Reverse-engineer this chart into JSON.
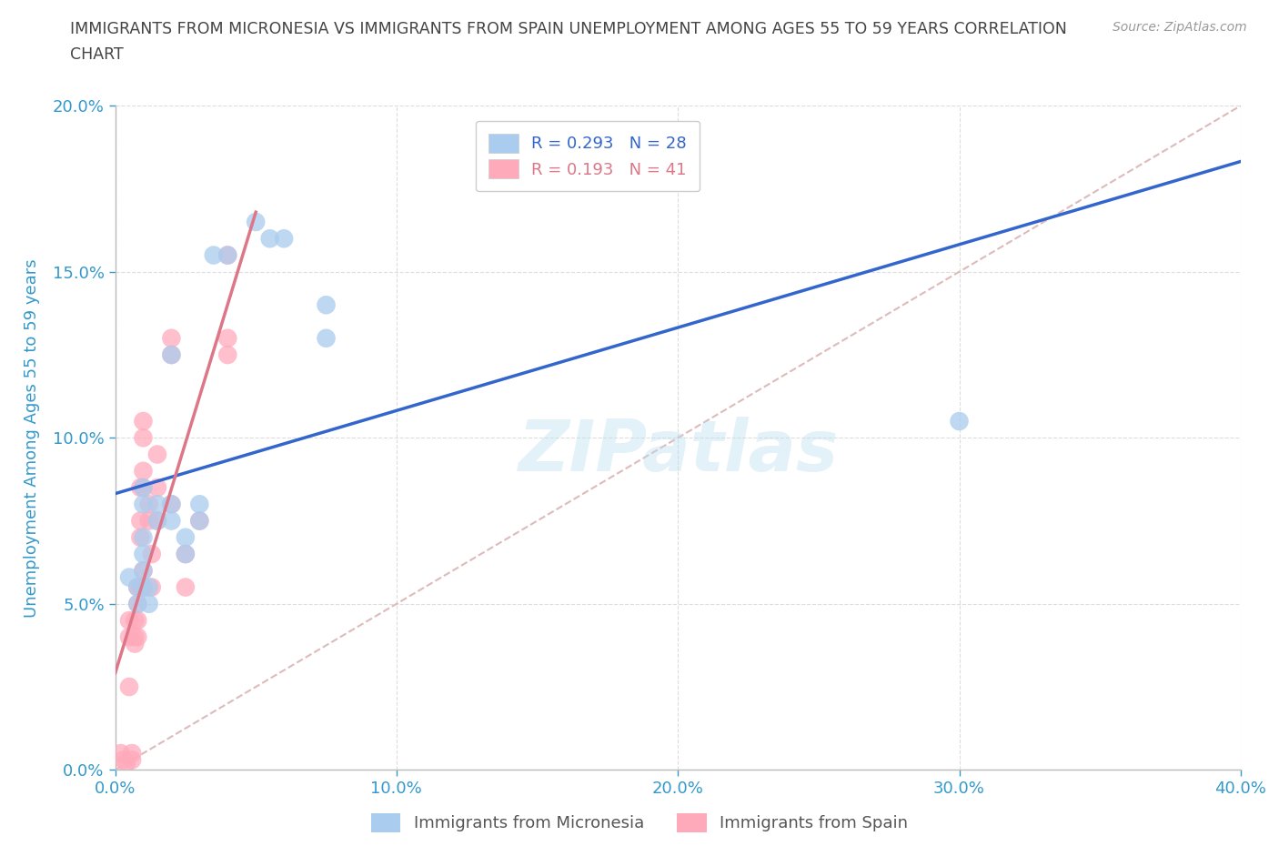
{
  "title_line1": "IMMIGRANTS FROM MICRONESIA VS IMMIGRANTS FROM SPAIN UNEMPLOYMENT AMONG AGES 55 TO 59 YEARS CORRELATION",
  "title_line2": "CHART",
  "source": "Source: ZipAtlas.com",
  "ylabel": "Unemployment Among Ages 55 to 59 years",
  "xlim": [
    0.0,
    0.4
  ],
  "ylim": [
    0.0,
    0.2
  ],
  "xticks": [
    0.0,
    0.1,
    0.2,
    0.3,
    0.4
  ],
  "yticks": [
    0.0,
    0.05,
    0.1,
    0.15,
    0.2
  ],
  "xtick_labels": [
    "0.0%",
    "10.0%",
    "20.0%",
    "30.0%",
    "40.0%"
  ],
  "ytick_labels": [
    "0.0%",
    "5.0%",
    "10.0%",
    "15.0%",
    "20.0%"
  ],
  "micronesia_color": "#aaccee",
  "spain_color": "#ffaabb",
  "micronesia_line_color": "#3366cc",
  "spain_line_color": "#dd7788",
  "diagonal_color": "#ddbbbb",
  "R_micronesia": 0.293,
  "N_micronesia": 28,
  "R_spain": 0.193,
  "N_spain": 41,
  "legend_label_micronesia": "Immigrants from Micronesia",
  "legend_label_spain": "Immigrants from Spain",
  "watermark": "ZIPatlas",
  "micronesia_x": [
    0.005,
    0.008,
    0.008,
    0.01,
    0.01,
    0.01,
    0.01,
    0.01,
    0.01,
    0.012,
    0.012,
    0.015,
    0.015,
    0.02,
    0.02,
    0.02,
    0.025,
    0.025,
    0.03,
    0.03,
    0.035,
    0.04,
    0.05,
    0.055,
    0.06,
    0.075,
    0.075,
    0.3
  ],
  "micronesia_y": [
    0.058,
    0.055,
    0.05,
    0.085,
    0.08,
    0.07,
    0.065,
    0.06,
    0.055,
    0.055,
    0.05,
    0.08,
    0.075,
    0.125,
    0.08,
    0.075,
    0.07,
    0.065,
    0.08,
    0.075,
    0.155,
    0.155,
    0.165,
    0.16,
    0.16,
    0.14,
    0.13,
    0.105
  ],
  "spain_x": [
    0.002,
    0.003,
    0.004,
    0.005,
    0.005,
    0.005,
    0.006,
    0.006,
    0.007,
    0.007,
    0.007,
    0.008,
    0.008,
    0.008,
    0.008,
    0.009,
    0.009,
    0.009,
    0.009,
    0.01,
    0.01,
    0.01,
    0.01,
    0.01,
    0.01,
    0.012,
    0.012,
    0.013,
    0.013,
    0.015,
    0.015,
    0.015,
    0.02,
    0.02,
    0.02,
    0.025,
    0.025,
    0.03,
    0.04,
    0.04,
    0.04
  ],
  "spain_y": [
    0.005,
    0.003,
    0.002,
    0.045,
    0.04,
    0.025,
    0.005,
    0.003,
    0.045,
    0.04,
    0.038,
    0.055,
    0.05,
    0.045,
    0.04,
    0.085,
    0.075,
    0.07,
    0.055,
    0.105,
    0.1,
    0.09,
    0.085,
    0.06,
    0.055,
    0.08,
    0.075,
    0.065,
    0.055,
    0.095,
    0.085,
    0.075,
    0.13,
    0.125,
    0.08,
    0.065,
    0.055,
    0.075,
    0.155,
    0.13,
    0.125
  ],
  "background_color": "#ffffff",
  "grid_color": "#dddddd",
  "title_color": "#444444",
  "axis_color": "#3399cc",
  "tick_color": "#3399cc"
}
